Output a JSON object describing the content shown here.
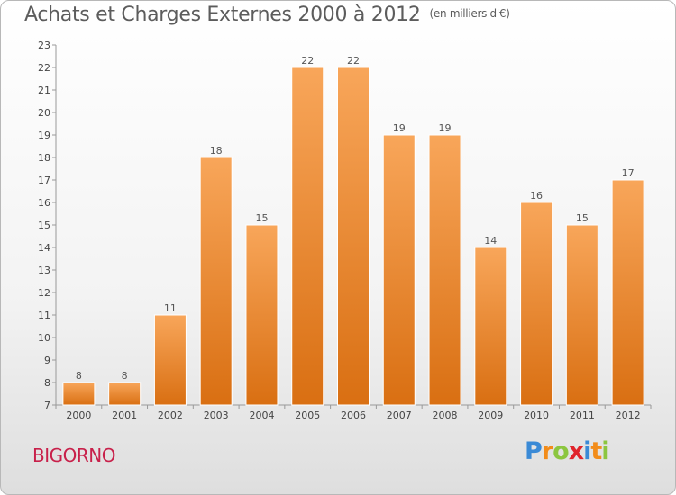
{
  "header": {
    "title": "Achats et Charges Externes 2000 à 2012",
    "unit": "(en milliers d'€)"
  },
  "commune": "BIGORNO",
  "logo": {
    "letters": [
      "P",
      "r",
      "o",
      "x",
      "i",
      "t",
      "i"
    ],
    "colors": [
      "#3a8ad6",
      "#f28c1a",
      "#8cc63f",
      "#e0242b",
      "#3a8ad6",
      "#f28c1a",
      "#8cc63f"
    ]
  },
  "chart_data": {
    "type": "bar",
    "categories": [
      "2000",
      "2001",
      "2002",
      "2003",
      "2004",
      "2005",
      "2006",
      "2007",
      "2008",
      "2009",
      "2010",
      "2011",
      "2012"
    ],
    "values": [
      8,
      8,
      11,
      18,
      15,
      22,
      22,
      19,
      19,
      14,
      16,
      15,
      17
    ],
    "ylim": [
      7,
      23
    ],
    "yticks": [
      7,
      8,
      9,
      10,
      11,
      12,
      13,
      14,
      15,
      16,
      17,
      18,
      19,
      20,
      21,
      22,
      23
    ],
    "bar_color": "#f0902e",
    "grid": false
  }
}
